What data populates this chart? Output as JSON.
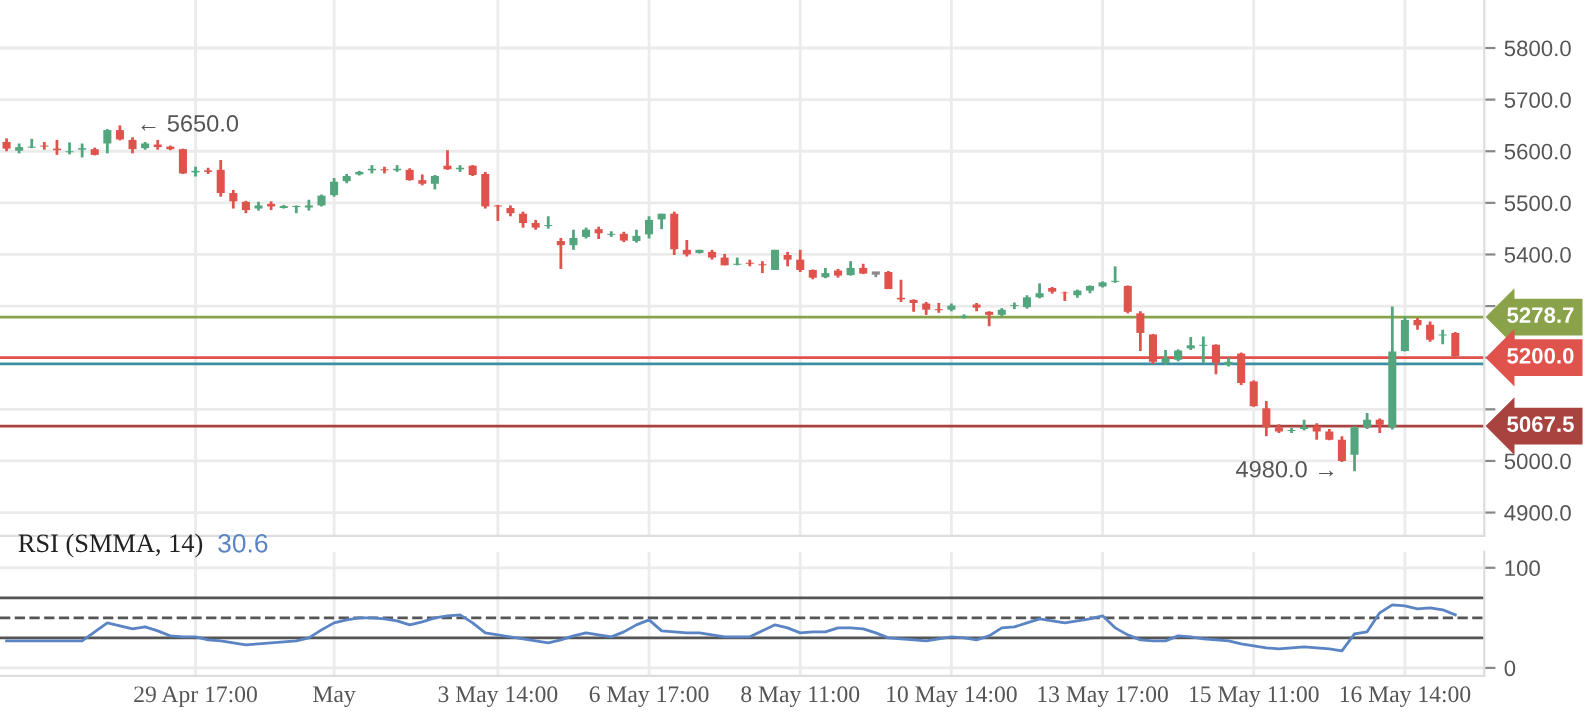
{
  "chart_data": [
    {
      "type": "candlestick",
      "categories": [
        null,
        null,
        null,
        null,
        null,
        null,
        null,
        null,
        null,
        null,
        null,
        null,
        null,
        null,
        null,
        null,
        null,
        null,
        null,
        null,
        null,
        null,
        null,
        null,
        null,
        null,
        null,
        null,
        null,
        null,
        null,
        null,
        null,
        null,
        null,
        null,
        null,
        null,
        null,
        null,
        null,
        null,
        null,
        null,
        null,
        null,
        null,
        null,
        null,
        null,
        null,
        null,
        null,
        null,
        null,
        null,
        null,
        null,
        null,
        null,
        null,
        null,
        null,
        null,
        null,
        null,
        null,
        null,
        null,
        null,
        null,
        null,
        null,
        null,
        null,
        null,
        null,
        null,
        null,
        null,
        null,
        null,
        null,
        null,
        null,
        null,
        null,
        null,
        null,
        null,
        null,
        null,
        null,
        null,
        null,
        null,
        null,
        null,
        null,
        null,
        null,
        null,
        null,
        null,
        null,
        null,
        null,
        null,
        null,
        null,
        null,
        null,
        null,
        null,
        null,
        null
      ],
      "ohlc": [
        [
          5618,
          5625,
          5600,
          5605
        ],
        [
          5601,
          5615,
          5596,
          5608
        ],
        [
          5607,
          5624,
          5606,
          5609
        ],
        [
          5611,
          5618,
          5603,
          5609
        ],
        [
          5605,
          5622,
          5593,
          5602
        ],
        [
          5598,
          5617,
          5594,
          5600
        ],
        [
          5603,
          5615,
          5588,
          5606
        ],
        [
          5604,
          5607,
          5592,
          5593
        ],
        [
          5615,
          5643,
          5596,
          5641
        ],
        [
          5641,
          5650,
          5621,
          5623
        ],
        [
          5622,
          5627,
          5596,
          5604
        ],
        [
          5606,
          5618,
          5603,
          5615
        ],
        [
          5613,
          5622,
          5603,
          5608
        ],
        [
          5609,
          5611,
          5602,
          5604
        ],
        [
          5604,
          5605,
          5556,
          5557
        ],
        [
          5559,
          5570,
          5551,
          5562
        ],
        [
          5563,
          5568,
          5556,
          5560
        ],
        [
          5564,
          5583,
          5512,
          5519
        ],
        [
          5519,
          5525,
          5489,
          5503
        ],
        [
          5502,
          5504,
          5480,
          5486
        ],
        [
          5489,
          5502,
          5485,
          5495
        ],
        [
          5498,
          5503,
          5486,
          5493
        ],
        [
          5490,
          5496,
          5489,
          5494
        ],
        [
          5492,
          5495,
          5480,
          5494
        ],
        [
          5491,
          5506,
          5485,
          5495
        ],
        [
          5495,
          5516,
          5493,
          5514
        ],
        [
          5515,
          5548,
          5512,
          5541
        ],
        [
          5542,
          5556,
          5538,
          5552
        ],
        [
          5555,
          5562,
          5553,
          5560
        ],
        [
          5563,
          5573,
          5557,
          5566
        ],
        [
          5565,
          5570,
          5557,
          5563
        ],
        [
          5563,
          5573,
          5560,
          5566
        ],
        [
          5564,
          5567,
          5543,
          5544
        ],
        [
          5544,
          5555,
          5534,
          5537
        ],
        [
          5537,
          5554,
          5526,
          5552
        ],
        [
          5572,
          5602,
          5564,
          5565
        ],
        [
          5565,
          5573,
          5560,
          5568
        ],
        [
          5572,
          5573,
          5552,
          5554
        ],
        [
          5556,
          5560,
          5489,
          5493
        ],
        [
          5495,
          5496,
          5465,
          5493
        ],
        [
          5490,
          5495,
          5474,
          5480
        ],
        [
          5479,
          5483,
          5452,
          5461
        ],
        [
          5461,
          5467,
          5448,
          5452
        ],
        [
          5455,
          5474,
          5450,
          5457
        ],
        [
          5426,
          5432,
          5372,
          5418
        ],
        [
          5418,
          5448,
          5409,
          5432
        ],
        [
          5434,
          5452,
          5431,
          5448
        ],
        [
          5449,
          5454,
          5430,
          5441
        ],
        [
          5438,
          5445,
          5434,
          5440
        ],
        [
          5440,
          5444,
          5424,
          5427
        ],
        [
          5426,
          5448,
          5423,
          5436
        ],
        [
          5439,
          5474,
          5431,
          5467
        ],
        [
          5468,
          5479,
          5449,
          5479
        ],
        [
          5479,
          5483,
          5399,
          5410
        ],
        [
          5409,
          5428,
          5396,
          5400
        ],
        [
          5403,
          5409,
          5402,
          5409
        ],
        [
          5405,
          5409,
          5390,
          5394
        ],
        [
          5394,
          5401,
          5379,
          5379
        ],
        [
          5380,
          5394,
          5379,
          5382
        ],
        [
          5384,
          5390,
          5377,
          5382
        ],
        [
          5381,
          5387,
          5364,
          5379
        ],
        [
          5370,
          5409,
          5370,
          5409
        ],
        [
          5399,
          5405,
          5377,
          5390
        ],
        [
          5390,
          5409,
          5366,
          5370
        ],
        [
          5370,
          5371,
          5352,
          5355
        ],
        [
          5356,
          5374,
          5354,
          5364
        ],
        [
          5369,
          5372,
          5355,
          5359
        ],
        [
          5360,
          5387,
          5359,
          5374
        ],
        [
          5374,
          5382,
          5362,
          5363
        ],
        [
          5364,
          5365,
          5356,
          5364
        ],
        [
          5366,
          5368,
          5333,
          5333
        ],
        [
          5316,
          5351,
          5308,
          5313
        ],
        [
          5312,
          5313,
          5289,
          5306
        ],
        [
          5305,
          5308,
          5283,
          5293
        ],
        [
          5294,
          5306,
          5287,
          5292
        ],
        [
          5293,
          5305,
          5290,
          5301
        ],
        [
          5278,
          5284,
          5276,
          5281
        ],
        [
          5303,
          5306,
          5290,
          5297
        ],
        [
          5289,
          5290,
          5261,
          5283
        ],
        [
          5283,
          5296,
          5280,
          5293
        ],
        [
          5300,
          5307,
          5294,
          5302
        ],
        [
          5298,
          5321,
          5295,
          5317
        ],
        [
          5317,
          5344,
          5315,
          5325
        ],
        [
          5335,
          5337,
          5324,
          5328
        ],
        [
          5326,
          5328,
          5310,
          5325
        ],
        [
          5321,
          5332,
          5316,
          5330
        ],
        [
          5330,
          5340,
          5325,
          5339
        ],
        [
          5338,
          5348,
          5336,
          5346
        ],
        [
          5347,
          5377,
          5345,
          5349
        ],
        [
          5339,
          5340,
          5286,
          5289
        ],
        [
          5286,
          5290,
          5213,
          5248
        ],
        [
          5245,
          5246,
          5188,
          5192
        ],
        [
          5190,
          5215,
          5186,
          5199
        ],
        [
          5196,
          5216,
          5193,
          5214
        ],
        [
          5218,
          5240,
          5215,
          5224
        ],
        [
          5223,
          5241,
          5190,
          5225
        ],
        [
          5225,
          5226,
          5168,
          5190
        ],
        [
          5186,
          5200,
          5183,
          5192
        ],
        [
          5208,
          5210,
          5147,
          5151
        ],
        [
          5154,
          5156,
          5105,
          5106
        ],
        [
          5102,
          5116,
          5048,
          5065
        ],
        [
          5065,
          5071,
          5054,
          5057
        ],
        [
          5058,
          5064,
          5054,
          5060
        ],
        [
          5062,
          5080,
          5059,
          5066
        ],
        [
          5067,
          5073,
          5041,
          5057
        ],
        [
          5057,
          5062,
          5040,
          5041
        ],
        [
          5041,
          5048,
          4998,
          5000
        ],
        [
          5012,
          5067,
          4980,
          5065
        ],
        [
          5065,
          5093,
          5062,
          5080
        ],
        [
          5080,
          5082,
          5054,
          5070
        ],
        [
          5065,
          5299,
          5061,
          5212
        ],
        [
          5213,
          5280,
          5212,
          5273
        ],
        [
          5273,
          5277,
          5254,
          5263
        ],
        [
          5264,
          5270,
          5231,
          5235
        ],
        [
          5243,
          5254,
          5226,
          5245
        ],
        [
          5248,
          5250,
          5202,
          5203
        ]
      ],
      "colors": [
        "#e0534d",
        "#53a57e",
        "#53a57e",
        "#e0534d",
        "#e0534d",
        "#53a57e",
        "#53a57e",
        "#e0534d",
        "#53a57e",
        "#e0534d",
        "#e0534d",
        "#53a57e",
        "#e0534d",
        "#e0534d",
        "#e0534d",
        "#53a57e",
        "#e0534d",
        "#e0534d",
        "#e0534d",
        "#e0534d",
        "#53a57e",
        "#e0534d",
        "#53a57e",
        "#53a57e",
        "#53a57e",
        "#53a57e",
        "#53a57e",
        "#53a57e",
        "#53a57e",
        "#53a57e",
        "#e0534d",
        "#53a57e",
        "#e0534d",
        "#e0534d",
        "#53a57e",
        "#e0534d",
        "#53a57e",
        "#e0534d",
        "#e0534d",
        "#e0534d",
        "#e0534d",
        "#e0534d",
        "#e0534d",
        "#53a57e",
        "#e0534d",
        "#53a57e",
        "#53a57e",
        "#e0534d",
        "#53a57e",
        "#e0534d",
        "#53a57e",
        "#53a57e",
        "#53a57e",
        "#e0534d",
        "#e0534d",
        "#53a57e",
        "#e0534d",
        "#e0534d",
        "#53a57e",
        "#e0534d",
        "#e0534d",
        "#53a57e",
        "#e0534d",
        "#e0534d",
        "#e0534d",
        "#53a57e",
        "#e0534d",
        "#53a57e",
        "#e0534d",
        "#8c8c8c",
        "#e0534d",
        "#e0534d",
        "#e0534d",
        "#e0534d",
        "#e0534d",
        "#53a57e",
        "#53a57e",
        "#e0534d",
        "#e0534d",
        "#53a57e",
        "#53a57e",
        "#53a57e",
        "#53a57e",
        "#e0534d",
        "#e0534d",
        "#53a57e",
        "#53a57e",
        "#53a57e",
        "#53a57e",
        "#e0534d",
        "#e0534d",
        "#e0534d",
        "#53a57e",
        "#53a57e",
        "#53a57e",
        "#53a57e",
        "#e0534d",
        "#53a57e",
        "#e0534d",
        "#e0534d",
        "#e0534d",
        "#e0534d",
        "#53a57e",
        "#53a57e",
        "#e0534d",
        "#e0534d",
        "#e0534d",
        "#53a57e",
        "#53a57e",
        "#e0534d",
        "#53a57e",
        "#53a57e",
        "#e0534d",
        "#e0534d",
        "#53a57e",
        "#e0534d"
      ],
      "ylim": [
        4855,
        5893
      ],
      "yticks": [
        {
          "value": 4900,
          "label": "4900.0"
        },
        {
          "value": 5000,
          "label": "5000.0"
        },
        {
          "value": 5100,
          "label": null
        },
        {
          "value": 5200,
          "label": null
        },
        {
          "value": 5300,
          "label": null
        },
        {
          "value": 5400,
          "label": "5400.0"
        },
        {
          "value": 5500,
          "label": "5500.0"
        },
        {
          "value": 5600,
          "label": "5600.0"
        },
        {
          "value": 5700,
          "label": "5700.0"
        },
        {
          "value": 5800,
          "label": "5800.0"
        }
      ],
      "grid": true,
      "tick_labels": "y",
      "ref_lines": [
        {
          "axis": "y",
          "value": 5188,
          "label": null,
          "color": "#3d8fa3"
        },
        {
          "axis": "y",
          "value": 5278.7,
          "label": "5278.7",
          "color": "#8aa34a"
        },
        {
          "axis": "y",
          "value": 5200,
          "label": "5200.0",
          "color": "#e0534d"
        },
        {
          "axis": "y",
          "value": 5067.5,
          "label": "5067.5",
          "color": "#a8433f"
        }
      ],
      "annotations": [
        "← 5650.0",
        "4980.0 →"
      ]
    },
    {
      "type": "line",
      "title": "RSI (SMMA, 14)",
      "categories": [
        null,
        null,
        null,
        null,
        null,
        null,
        null,
        null,
        null,
        null,
        null,
        null,
        null,
        null,
        null,
        "29 Apr 17:00",
        null,
        null,
        null,
        null,
        null,
        null,
        null,
        null,
        null,
        null,
        "May",
        null,
        null,
        null,
        null,
        null,
        null,
        null,
        null,
        null,
        null,
        null,
        null,
        "3 May 14:00",
        null,
        null,
        null,
        null,
        null,
        null,
        null,
        null,
        null,
        null,
        null,
        "6 May 17:00",
        null,
        null,
        null,
        null,
        null,
        null,
        null,
        null,
        null,
        null,
        null,
        "8 May 11:00",
        null,
        null,
        null,
        null,
        null,
        null,
        null,
        null,
        null,
        null,
        null,
        "10 May 14:00",
        null,
        null,
        null,
        null,
        null,
        null,
        null,
        null,
        null,
        null,
        null,
        "13 May 17:00",
        null,
        null,
        null,
        null,
        null,
        null,
        null,
        null,
        null,
        null,
        null,
        "15 May 11:00",
        null,
        null,
        null,
        null,
        null,
        null,
        null,
        null,
        null,
        null,
        null,
        "16 May 14:00",
        null,
        null,
        null,
        null
      ],
      "series": [
        {
          "color": "#5b84c4",
          "values": [
            27,
            27,
            27,
            27,
            27,
            27,
            27,
            36,
            45,
            42,
            39,
            41,
            37,
            32,
            31,
            31,
            28,
            27,
            25,
            23,
            24,
            25,
            26,
            27,
            30,
            38,
            45,
            48,
            50,
            50,
            49,
            47,
            43,
            46,
            50,
            52,
            53,
            45,
            35,
            33,
            31,
            29,
            27,
            25,
            28,
            32,
            35,
            33,
            31,
            36,
            43,
            48,
            37,
            36,
            35,
            35,
            33,
            31,
            31,
            31,
            37,
            43,
            40,
            35,
            36,
            36,
            40,
            40,
            39,
            35,
            30,
            29,
            28,
            27,
            29,
            31,
            30,
            28,
            32,
            40,
            41,
            45,
            49,
            47,
            45,
            47,
            49,
            52,
            40,
            33,
            28,
            27,
            27,
            32,
            31,
            29,
            28,
            27,
            24,
            22,
            20,
            19,
            20,
            21,
            20,
            19,
            17,
            34,
            36,
            55,
            63,
            62,
            59,
            60,
            58,
            53
          ]
        }
      ],
      "ylim": [
        -8,
        116
      ],
      "yticks": [
        0,
        100
      ],
      "grid": true,
      "ref_lines": [
        {
          "axis": "y",
          "value": 70,
          "color": "#555555",
          "line_style": "solid"
        },
        {
          "axis": "y",
          "value": 50,
          "color": "#555555",
          "line_style": "dashed"
        },
        {
          "axis": "y",
          "value": 30,
          "color": "#555555",
          "line_style": "solid"
        }
      ],
      "annotations": [
        "30.6"
      ]
    }
  ]
}
